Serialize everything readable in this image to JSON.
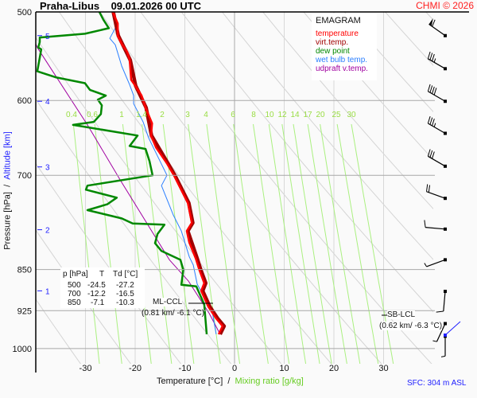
{
  "header": {
    "station": "Praha-Libus",
    "datetime": "09.01.2026 00 UTC",
    "copyright": "CHMI © 2026"
  },
  "legend": {
    "title": "EMAGRAM",
    "items": [
      {
        "label": "temperature",
        "color": "#ff0000"
      },
      {
        "label": "virt.temp.",
        "color": "#a00000"
      },
      {
        "label": "dew point",
        "color": "#008800"
      },
      {
        "label": "wet bulb temp.",
        "color": "#2a7fff"
      },
      {
        "label": "udpraft v.temp.",
        "color": "#a000a0"
      }
    ]
  },
  "table": {
    "headers": [
      "p [hPa]",
      "T",
      "Td [°C]"
    ],
    "rows": [
      [
        "500",
        "-24.5",
        "-27.2"
      ],
      [
        "700",
        "-12.2",
        "-16.5"
      ],
      [
        "850",
        "-7.1",
        "-10.3"
      ]
    ]
  },
  "annotations": {
    "ml_ccl_label": "ML-CCL",
    "ml_ccl_value": "(0.81 km/ -6.1 °C)",
    "sb_lcl_label": "SB-LCL",
    "sb_lcl_value": "(0.62 km/ -6.3 °C)",
    "surface": "SFC: 304 m ASL"
  },
  "chart_data": {
    "type": "line",
    "subtype": "emagram",
    "xlabel": "Temperature [°C]",
    "xlabel2": "Mixing ratio [g/kg]",
    "ylabel": "Pressure [hPa]",
    "ylabel2": "Altitude [km]",
    "xlim": [
      -40,
      40
    ],
    "ylim": [
      1050,
      500
    ],
    "yscale": "log",
    "x_ticks": [
      "-30",
      "-20",
      "-10",
      "0",
      "10",
      "20",
      "30"
    ],
    "y_ticks": [
      "500",
      "600",
      "700",
      "850",
      "925",
      "1000"
    ],
    "altitude_ticks": [
      {
        "km": "5",
        "p": 525
      },
      {
        "km": "4",
        "p": 601
      },
      {
        "km": "3",
        "p": 688
      },
      {
        "km": "2",
        "p": 783
      },
      {
        "km": "1",
        "p": 888
      }
    ],
    "mixing_ratio_labels": [
      "0.4",
      "0.6",
      "1",
      "1.4",
      "2",
      "3",
      "4",
      "6",
      "8",
      "10",
      "12",
      "14",
      "17",
      "20",
      "25",
      "30"
    ],
    "series": [
      {
        "name": "temperature",
        "color": "#ff0000",
        "points": [
          [
            500,
            -24.5
          ],
          [
            512,
            -23.5
          ],
          [
            525,
            -23.5
          ],
          [
            534,
            -22.7
          ],
          [
            543,
            -21.6
          ],
          [
            552,
            -21.1
          ],
          [
            575,
            -20.8
          ],
          [
            582,
            -20.0
          ],
          [
            594,
            -18.7
          ],
          [
            609,
            -17.9
          ],
          [
            629,
            -16.6
          ],
          [
            645,
            -16.8
          ],
          [
            661,
            -15.8
          ],
          [
            683,
            -13.6
          ],
          [
            700,
            -12.2
          ],
          [
            741,
            -9.4
          ],
          [
            772,
            -8.6
          ],
          [
            785,
            -9.6
          ],
          [
            804,
            -9.1
          ],
          [
            831,
            -7.8
          ],
          [
            850,
            -7.1
          ],
          [
            874,
            -6.1
          ],
          [
            888,
            -6.7
          ],
          [
            917,
            -5.3
          ],
          [
            940,
            -3.7
          ],
          [
            955,
            -2.4
          ],
          [
            971,
            -3.2
          ]
        ]
      },
      {
        "name": "virt.temp.",
        "color": "#a00000",
        "points": [
          [
            500,
            -24.4
          ],
          [
            525,
            -23.4
          ],
          [
            552,
            -21.0
          ],
          [
            582,
            -19.9
          ],
          [
            609,
            -17.8
          ],
          [
            645,
            -16.7
          ],
          [
            683,
            -13.4
          ],
          [
            700,
            -12.0
          ],
          [
            741,
            -9.2
          ],
          [
            772,
            -8.4
          ],
          [
            785,
            -9.4
          ],
          [
            831,
            -7.5
          ],
          [
            850,
            -6.8
          ],
          [
            874,
            -5.8
          ],
          [
            888,
            -6.4
          ],
          [
            917,
            -5.0
          ],
          [
            940,
            -3.4
          ],
          [
            955,
            -2.1
          ],
          [
            971,
            -2.9
          ]
        ]
      },
      {
        "name": "dew point",
        "color": "#008800",
        "points": [
          [
            500,
            -27.2
          ],
          [
            508,
            -26.4
          ],
          [
            517,
            -25.3
          ],
          [
            523,
            -30.1
          ],
          [
            527,
            -39.2
          ],
          [
            532,
            -39.2
          ],
          [
            538,
            -39.5
          ],
          [
            540,
            -38.9
          ],
          [
            565,
            -39.7
          ],
          [
            572,
            -36.0
          ],
          [
            579,
            -30.1
          ],
          [
            587,
            -29.1
          ],
          [
            594,
            -25.9
          ],
          [
            599,
            -27.5
          ],
          [
            606,
            -26.7
          ],
          [
            617,
            -26.9
          ],
          [
            627,
            -28.3
          ],
          [
            631,
            -32.5
          ],
          [
            645,
            -19.5
          ],
          [
            659,
            -21.1
          ],
          [
            663,
            -17.9
          ],
          [
            680,
            -17.1
          ],
          [
            700,
            -16.5
          ],
          [
            715,
            -29.6
          ],
          [
            721,
            -29.9
          ],
          [
            733,
            -23.7
          ],
          [
            743,
            -25.6
          ],
          [
            752,
            -29.6
          ],
          [
            755,
            -28.0
          ],
          [
            765,
            -22.7
          ],
          [
            773,
            -20.5
          ],
          [
            775,
            -14.1
          ],
          [
            790,
            -15.5
          ],
          [
            805,
            -16.0
          ],
          [
            818,
            -14.7
          ],
          [
            833,
            -10.9
          ],
          [
            850,
            -10.3
          ],
          [
            877,
            -10.7
          ],
          [
            880,
            -7.7
          ],
          [
            913,
            -6.1
          ],
          [
            971,
            -5.6
          ]
        ]
      },
      {
        "name": "wet bulb temp.",
        "color": "#2a7fff",
        "points": [
          [
            500,
            -24.4
          ],
          [
            514,
            -23.7
          ],
          [
            528,
            -25.1
          ],
          [
            535,
            -24.0
          ],
          [
            559,
            -22.7
          ],
          [
            581,
            -21.1
          ],
          [
            594,
            -20.3
          ],
          [
            604,
            -20.3
          ],
          [
            621,
            -18.9
          ],
          [
            627,
            -18.4
          ],
          [
            648,
            -17.3
          ],
          [
            700,
            -13.6
          ],
          [
            715,
            -14.7
          ],
          [
            760,
            -12.3
          ],
          [
            785,
            -10.7
          ],
          [
            828,
            -9.1
          ],
          [
            842,
            -8.3
          ],
          [
            876,
            -7.5
          ],
          [
            926,
            -4.5
          ],
          [
            971,
            -3.7
          ]
        ]
      },
      {
        "name": "udpraft v.temp.",
        "color": "#a000a0",
        "points": [
          [
            534,
            -40.0
          ],
          [
            538,
            -39.7
          ],
          [
            631,
            -29.6
          ],
          [
            708,
            -22.9
          ],
          [
            833,
            -13.1
          ],
          [
            870,
            -9.3
          ],
          [
            930,
            -5.1
          ],
          [
            971,
            -2.9
          ]
        ]
      }
    ],
    "wind_barbs": [
      {
        "p": 525,
        "dir": 305,
        "kt": 60
      },
      {
        "p": 562,
        "dir": 300,
        "kt": 35
      },
      {
        "p": 601,
        "dir": 300,
        "kt": 40
      },
      {
        "p": 642,
        "dir": 300,
        "kt": 35
      },
      {
        "p": 687,
        "dir": 300,
        "kt": 30
      },
      {
        "p": 734,
        "dir": 290,
        "kt": 20
      },
      {
        "p": 782,
        "dir": 275,
        "kt": 10
      },
      {
        "p": 833,
        "dir": 250,
        "kt": 5
      },
      {
        "p": 889,
        "dir": 185,
        "kt": 10
      },
      {
        "p": 950,
        "dir": 205,
        "kt": 5
      },
      {
        "p": 975,
        "dir": 180,
        "kt": 5
      }
    ],
    "grid": true,
    "legend_position": "top-right"
  }
}
